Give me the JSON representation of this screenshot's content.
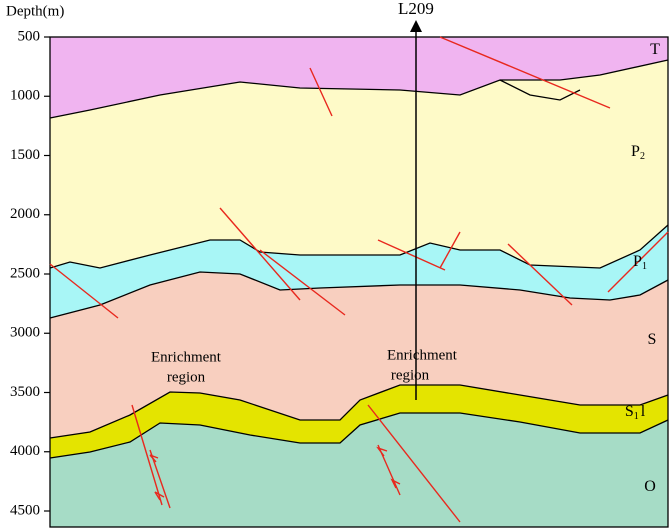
{
  "axis": {
    "title": "Depth(m)",
    "ticks": [
      500,
      1000,
      1500,
      2000,
      2500,
      3000,
      3500,
      4000,
      4500
    ]
  },
  "line_label": "L209",
  "layers": [
    {
      "text": "T"
    },
    {
      "text": "P",
      "sub": "2"
    },
    {
      "text": "P",
      "sub": "1"
    },
    {
      "text": "S"
    },
    {
      "text": "S",
      "sub": "1",
      "suffix": "l"
    },
    {
      "text": "O"
    }
  ],
  "annotations": [
    {
      "lines": [
        "Enrichment",
        "region"
      ]
    },
    {
      "lines": [
        "Enrichment",
        "region"
      ]
    }
  ]
}
